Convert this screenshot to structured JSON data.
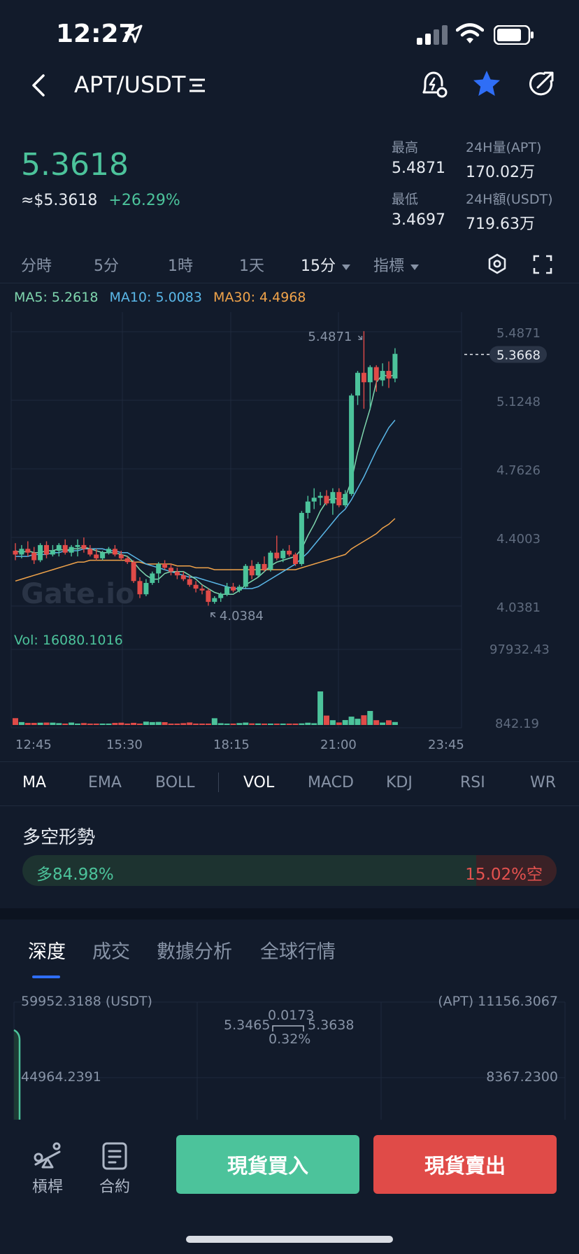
{
  "status": {
    "time": "12:27"
  },
  "header": {
    "pair": "APT/USDT"
  },
  "ticker": {
    "price": "5.3618",
    "approx": "≈$5.3618",
    "change": "+26.29%",
    "high_label": "最高",
    "high": "5.4871",
    "low_label": "最低",
    "low": "3.4697",
    "vol_label": "24H量(APT)",
    "vol": "170.02万",
    "amt_label": "24H額(USDT)",
    "amt": "719.63万"
  },
  "timeframes": [
    "分時",
    "5分",
    "1時",
    "1天",
    "15分",
    "指標"
  ],
  "active_timeframe": "15分",
  "ma": {
    "ma5": "MA5: 5.2618",
    "ma10": "MA10: 5.0083",
    "ma30": "MA30: 4.4968"
  },
  "colors": {
    "up": "#4cc39b",
    "down": "#e04b48",
    "ma5": "#7fd6ae",
    "ma10": "#5ab7e8",
    "ma30": "#f0a34a",
    "accent": "#2f6ef6"
  },
  "chart_data": {
    "type": "candlestick",
    "price_ticks": [
      "5.4871",
      "5.1248",
      "4.7626",
      "4.4003",
      "4.0381"
    ],
    "price_range": [
      4.0381,
      5.4871
    ],
    "current_price_tag": "5.3668",
    "current_price": 5.3668,
    "max_label": "5.4871",
    "min_label": "4.0384",
    "watermark": "Gate.io",
    "vol_label": "Vol: 16080.1016",
    "vol_ticks": [
      "97932.43",
      "842.19"
    ],
    "vol_range": [
      842.19,
      97932.43
    ],
    "time_ticks": [
      "12:45",
      "15:30",
      "18:15",
      "21:00",
      "23:45"
    ],
    "candles": [
      [
        4.33,
        4.37,
        4.28,
        4.31
      ],
      [
        4.31,
        4.36,
        4.29,
        4.34
      ],
      [
        4.34,
        4.38,
        4.3,
        4.32
      ],
      [
        4.32,
        4.35,
        4.26,
        4.28
      ],
      [
        4.28,
        4.37,
        4.27,
        4.36
      ],
      [
        4.36,
        4.38,
        4.29,
        4.31
      ],
      [
        4.31,
        4.36,
        4.3,
        4.33
      ],
      [
        4.33,
        4.37,
        4.3,
        4.36
      ],
      [
        4.36,
        4.39,
        4.31,
        4.32
      ],
      [
        4.32,
        4.36,
        4.3,
        4.35
      ],
      [
        4.35,
        4.39,
        4.3,
        4.36
      ],
      [
        4.36,
        4.4,
        4.32,
        4.34
      ],
      [
        4.34,
        4.36,
        4.3,
        4.31
      ],
      [
        4.31,
        4.34,
        4.28,
        4.29
      ],
      [
        4.29,
        4.33,
        4.28,
        4.32
      ],
      [
        4.32,
        4.35,
        4.31,
        4.34
      ],
      [
        4.34,
        4.36,
        4.3,
        4.31
      ],
      [
        4.31,
        4.33,
        4.28,
        4.29
      ],
      [
        4.29,
        4.3,
        4.26,
        4.27
      ],
      [
        4.27,
        4.28,
        4.16,
        4.17
      ],
      [
        4.17,
        4.19,
        4.08,
        4.1
      ],
      [
        4.1,
        4.18,
        4.09,
        4.16
      ],
      [
        4.16,
        4.22,
        4.15,
        4.21
      ],
      [
        4.21,
        4.27,
        4.16,
        4.26
      ],
      [
        4.26,
        4.28,
        4.23,
        4.24
      ],
      [
        4.24,
        4.26,
        4.2,
        4.22
      ],
      [
        4.22,
        4.24,
        4.18,
        4.2
      ],
      [
        4.2,
        4.22,
        4.17,
        4.18
      ],
      [
        4.18,
        4.2,
        4.14,
        4.15
      ],
      [
        4.15,
        4.17,
        4.11,
        4.13
      ],
      [
        4.13,
        4.15,
        4.1,
        4.12
      ],
      [
        4.12,
        4.13,
        4.04,
        4.06
      ],
      [
        4.06,
        4.09,
        4.05,
        4.08
      ],
      [
        4.08,
        4.11,
        4.06,
        4.1
      ],
      [
        4.1,
        4.16,
        4.09,
        4.14
      ],
      [
        4.14,
        4.16,
        4.11,
        4.12
      ],
      [
        4.12,
        4.15,
        4.11,
        4.14
      ],
      [
        4.14,
        4.26,
        4.13,
        4.25
      ],
      [
        4.25,
        4.28,
        4.18,
        4.2
      ],
      [
        4.2,
        4.27,
        4.19,
        4.26
      ],
      [
        4.26,
        4.3,
        4.22,
        4.23
      ],
      [
        4.23,
        4.33,
        4.22,
        4.32
      ],
      [
        4.32,
        4.41,
        4.28,
        4.29
      ],
      [
        4.29,
        4.34,
        4.27,
        4.33
      ],
      [
        4.33,
        4.36,
        4.3,
        4.31
      ],
      [
        4.31,
        4.32,
        4.25,
        4.26
      ],
      [
        4.26,
        4.54,
        4.25,
        4.53
      ],
      [
        4.53,
        4.62,
        4.5,
        4.59
      ],
      [
        4.59,
        4.66,
        4.55,
        4.61
      ],
      [
        4.61,
        4.64,
        4.57,
        4.62
      ],
      [
        4.62,
        4.65,
        4.57,
        4.58
      ],
      [
        4.58,
        4.66,
        4.52,
        4.64
      ],
      [
        4.64,
        4.66,
        4.56,
        4.57
      ],
      [
        4.57,
        4.65,
        4.56,
        4.63
      ],
      [
        4.63,
        5.16,
        4.62,
        5.15
      ],
      [
        5.15,
        5.28,
        5.1,
        5.27
      ],
      [
        5.27,
        5.49,
        5.08,
        5.22
      ],
      [
        5.22,
        5.31,
        5.08,
        5.3
      ],
      [
        5.3,
        5.31,
        5.17,
        5.23
      ],
      [
        5.23,
        5.32,
        5.2,
        5.28
      ],
      [
        5.28,
        5.33,
        5.19,
        5.24
      ],
      [
        5.24,
        5.4,
        5.22,
        5.37
      ]
    ],
    "volumes": [
      9000,
      3800,
      2700,
      2700,
      3000,
      3200,
      3100,
      2400,
      1600,
      3200,
      1700,
      2500,
      1700,
      1600,
      1600,
      1200,
      2700,
      3000,
      1800,
      2800,
      1700,
      4400,
      3800,
      4000,
      3700,
      1300,
      1800,
      2400,
      3300,
      1600,
      1500,
      1800,
      8900,
      2300,
      1300,
      1200,
      2500,
      3200,
      2100,
      2000,
      1000,
      1500,
      1000,
      1800,
      1400,
      1500,
      2100,
      3000,
      2300,
      44300,
      12400,
      6300,
      3300,
      6500,
      11000,
      8200,
      12800,
      18500,
      6300,
      3200,
      6200,
      3900
    ],
    "ma5": [
      4.33,
      4.32,
      4.33,
      4.32,
      4.32,
      4.33,
      4.33,
      4.34,
      4.33,
      4.34,
      4.34,
      4.35,
      4.34,
      4.33,
      4.32,
      4.32,
      4.32,
      4.31,
      4.3,
      4.27,
      4.23,
      4.2,
      4.18,
      4.18,
      4.21,
      4.22,
      4.22,
      4.22,
      4.2,
      4.18,
      4.15,
      4.13,
      4.11,
      4.1,
      4.1,
      4.1,
      4.12,
      4.15,
      4.17,
      4.19,
      4.22,
      4.25,
      4.27,
      4.28,
      4.29,
      4.3,
      4.34,
      4.41,
      4.47,
      4.54,
      4.59,
      4.61,
      4.6,
      4.61,
      4.7,
      4.85,
      4.97,
      5.08,
      5.22,
      5.26,
      5.25,
      5.26
    ],
    "ma10": [
      4.3,
      4.3,
      4.3,
      4.31,
      4.31,
      4.31,
      4.32,
      4.32,
      4.33,
      4.33,
      4.33,
      4.34,
      4.34,
      4.34,
      4.34,
      4.33,
      4.33,
      4.32,
      4.32,
      4.3,
      4.28,
      4.26,
      4.25,
      4.24,
      4.23,
      4.22,
      4.21,
      4.2,
      4.19,
      4.19,
      4.18,
      4.17,
      4.16,
      4.15,
      4.14,
      4.13,
      4.13,
      4.13,
      4.13,
      4.14,
      4.16,
      4.18,
      4.2,
      4.22,
      4.24,
      4.26,
      4.29,
      4.32,
      4.36,
      4.4,
      4.44,
      4.48,
      4.52,
      4.55,
      4.6,
      4.66,
      4.72,
      4.79,
      4.86,
      4.92,
      4.98,
      5.02
    ],
    "ma30": [
      4.17,
      4.18,
      4.19,
      4.2,
      4.21,
      4.22,
      4.23,
      4.24,
      4.25,
      4.26,
      4.27,
      4.27,
      4.28,
      4.28,
      4.28,
      4.28,
      4.28,
      4.28,
      4.28,
      4.27,
      4.27,
      4.26,
      4.26,
      4.26,
      4.26,
      4.26,
      4.25,
      4.25,
      4.25,
      4.24,
      4.24,
      4.24,
      4.23,
      4.23,
      4.23,
      4.23,
      4.23,
      4.23,
      4.23,
      4.23,
      4.23,
      4.23,
      4.23,
      4.23,
      4.23,
      4.23,
      4.24,
      4.25,
      4.26,
      4.27,
      4.28,
      4.29,
      4.3,
      4.31,
      4.34,
      4.36,
      4.38,
      4.4,
      4.42,
      4.45,
      4.47,
      4.5
    ]
  },
  "indicators": [
    "MA",
    "EMA",
    "BOLL",
    "VOL",
    "MACD",
    "KDJ",
    "RSI",
    "WR"
  ],
  "active_indicators": [
    "MA",
    "VOL"
  ],
  "long_short": {
    "title": "多空形勢",
    "long": "多84.98%",
    "short": "15.02%空",
    "long_pct": 84.98
  },
  "tabs": [
    "深度",
    "成交",
    "數據分析",
    "全球行情"
  ],
  "active_tab": "深度",
  "depth": {
    "left_top": "59952.3188 (USDT)",
    "right_top": "(APT) 11156.3067",
    "left_mid": "44964.2391",
    "right_mid": "8367.2300",
    "bid": "5.3465",
    "ask": "5.3638",
    "spread": "0.0173",
    "spread_pct": "0.32%"
  },
  "bottom": {
    "leverage": "槓桿",
    "contract": "合約",
    "buy": "現貨買入",
    "sell": "現貨賣出"
  }
}
